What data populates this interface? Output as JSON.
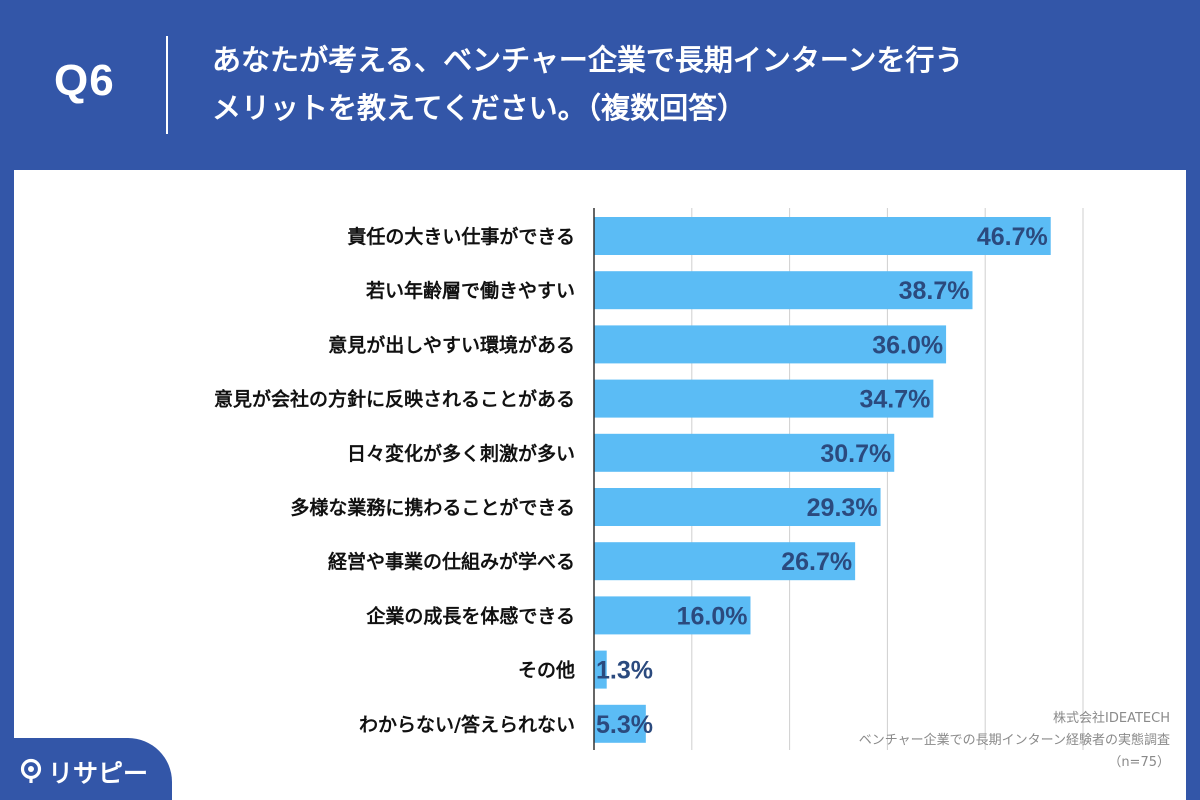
{
  "header": {
    "question_number": "Q6",
    "title_line1": "あなたが考える、ベンチャー企業で長期インターンを行う",
    "title_line2": "メリットを教えてください。（複数回答）"
  },
  "colors": {
    "header_background": "#3356a8",
    "bar": "#5bbcf5",
    "bar_label": "#2b4a7e",
    "gridline": "#cfcfcf",
    "category_text": "#111111",
    "source_text": "#8a8a8a"
  },
  "chart_data": {
    "type": "bar",
    "orientation": "horizontal",
    "categories": [
      "責任の大きい仕事ができる",
      "若い年齢層で働きやすい",
      "意見が出しやすい環境がある",
      "意見が会社の方針に反映されることがある",
      "日々変化が多く刺激が多い",
      "多様な業務に携わることができる",
      "経営や事業の仕組みが学べる",
      "企業の成長を体感できる",
      "その他",
      "わからない/答えられない"
    ],
    "values": [
      46.7,
      38.7,
      36.0,
      34.7,
      30.7,
      29.3,
      26.7,
      16.0,
      1.3,
      5.3
    ],
    "data_labels": [
      "46.7%",
      "38.7%",
      "36.0%",
      "34.7%",
      "30.7%",
      "29.3%",
      "26.7%",
      "16.0%",
      "1.3%",
      "5.3%"
    ],
    "xlim": [
      0,
      50
    ],
    "grid": true
  },
  "source": {
    "company": "株式会社IDEATECH",
    "survey": "ベンチャー企業での長期インターン経験者の実態調査",
    "sample": "（n=75）"
  },
  "logo": {
    "icon": "risapi-logo-icon",
    "text": "リサピー"
  }
}
